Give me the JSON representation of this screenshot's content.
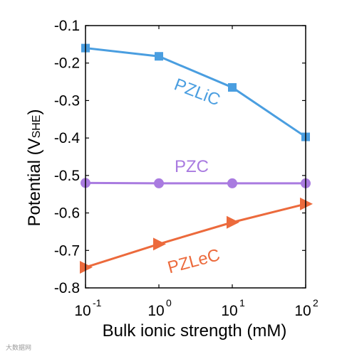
{
  "chart_data": {
    "type": "line",
    "xlabel": "Bulk ionic strength (mM)",
    "ylabel": {
      "main": "Potential (V",
      "sub": "SHE",
      "close": ")"
    },
    "x_scale": "log",
    "x": [
      0.1,
      1,
      10,
      100
    ],
    "x_ticks": [
      {
        "value": 0.1,
        "base": "10",
        "exp": "-1"
      },
      {
        "value": 1,
        "base": "10",
        "exp": "0"
      },
      {
        "value": 10,
        "base": "10",
        "exp": "1"
      },
      {
        "value": 100,
        "base": "10",
        "exp": "2"
      }
    ],
    "xlim": [
      0.1,
      100
    ],
    "ylim": [
      -0.8,
      -0.1
    ],
    "y_ticks": [
      "-0.1",
      "-0.2",
      "-0.3",
      "-0.4",
      "-0.5",
      "-0.6",
      "-0.7",
      "-0.8"
    ],
    "grid": false,
    "series": [
      {
        "name": "PZLiC",
        "color": "#4a9ee0",
        "marker": "square",
        "values": [
          -0.16,
          -0.182,
          -0.265,
          -0.397
        ]
      },
      {
        "name": "PZC",
        "color": "#a97be0",
        "marker": "circle",
        "values": [
          -0.52,
          -0.521,
          -0.521,
          -0.521
        ]
      },
      {
        "name": "PZLeC",
        "color": "#ec6a3c",
        "marker": "triangle",
        "values": [
          -0.745,
          -0.683,
          -0.625,
          -0.576
        ]
      }
    ]
  },
  "watermark": "大数据网"
}
